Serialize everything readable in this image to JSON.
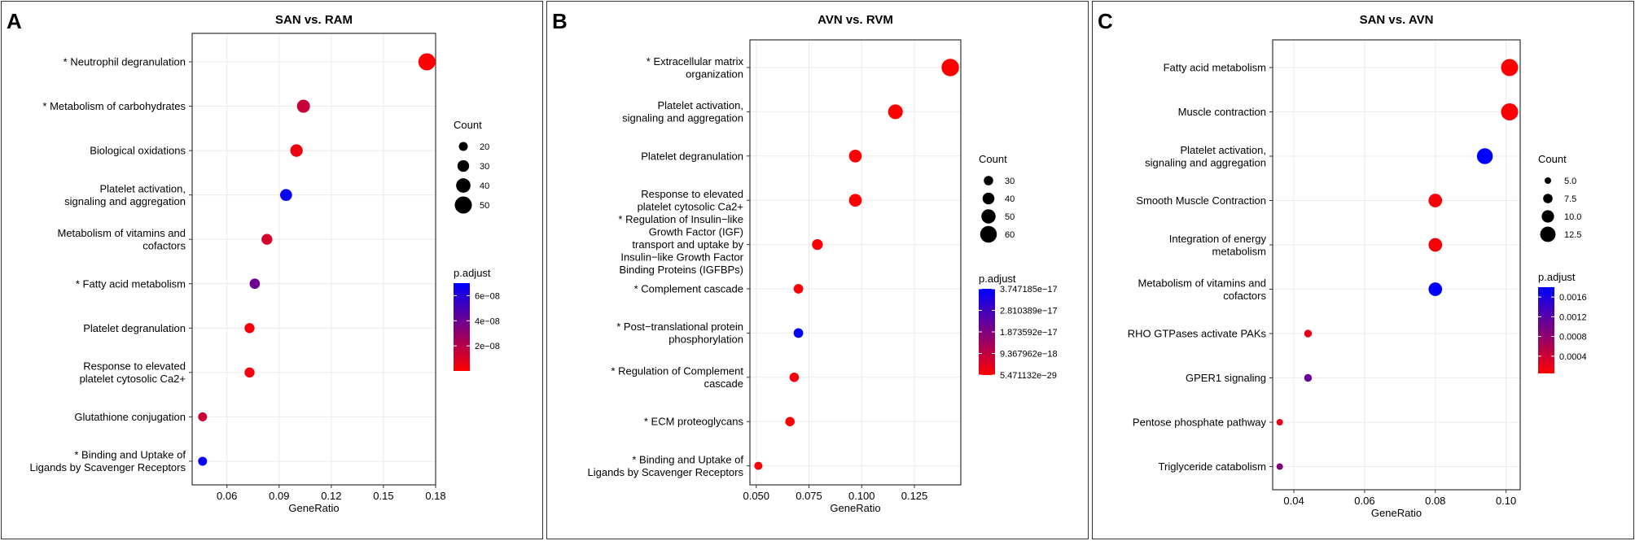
{
  "chart_data": [
    {
      "type": "scatter",
      "panel_letter": "A",
      "title": "SAN vs. RAM",
      "xlabel": "GeneRatio",
      "ylabel": "",
      "xlim": [
        0.04,
        0.18
      ],
      "xticks": [
        0.06,
        0.09,
        0.12,
        0.15,
        0.18
      ],
      "xtick_labels": [
        "0.06",
        "0.09",
        "0.12",
        "0.15",
        "0.18"
      ],
      "size_legend": {
        "title": "Count",
        "values": [
          20,
          30,
          40,
          50
        ],
        "labels": [
          "20",
          "30",
          "40",
          "50"
        ]
      },
      "color_legend": {
        "title": "p.adjust",
        "min": 0,
        "max": 7e-08,
        "labels": [
          "6e−08",
          "4e−08",
          "2e−08"
        ],
        "label_values": [
          6e-08,
          4e-08,
          2e-08
        ]
      },
      "points": [
        {
          "term": "* Neutrophil degranulation",
          "x": 0.175,
          "count": 58,
          "p": 1e-10
        },
        {
          "term": "* Metabolism of carbohydrates",
          "x": 0.104,
          "count": 35,
          "p": 1.5e-08
        },
        {
          "term": "Biological oxidations",
          "x": 0.1,
          "count": 33,
          "p": 4e-09
        },
        {
          "term": "Platelet activation,\nsignaling and aggregation",
          "x": 0.094,
          "count": 31,
          "p": 6.8e-08
        },
        {
          "term": "Metabolism of vitamins and\ncofactors",
          "x": 0.083,
          "count": 27,
          "p": 1.2e-08
        },
        {
          "term": "* Fatty acid metabolism",
          "x": 0.076,
          "count": 25,
          "p": 4e-08
        },
        {
          "term": "Platelet degranulation",
          "x": 0.073,
          "count": 24,
          "p": 3e-09
        },
        {
          "term": "Response to elevated\nplatelet cytosolic Ca2+",
          "x": 0.073,
          "count": 24,
          "p": 3e-09
        },
        {
          "term": "Glutathione conjugation",
          "x": 0.046,
          "count": 13,
          "p": 1.5e-08
        },
        {
          "term": "* Binding and Uptake of\nLigands by Scavenger Receptors",
          "x": 0.046,
          "count": 13,
          "p": 6.9e-08
        }
      ]
    },
    {
      "type": "scatter",
      "panel_letter": "B",
      "title": "AVN vs. RVM",
      "xlabel": "GeneRatio",
      "ylabel": "",
      "xlim": [
        0.047,
        0.147
      ],
      "xticks": [
        0.05,
        0.075,
        0.1,
        0.125
      ],
      "xtick_labels": [
        "0.050",
        "0.075",
        "0.100",
        "0.125"
      ],
      "size_legend": {
        "title": "Count",
        "values": [
          30,
          40,
          50,
          60
        ],
        "labels": [
          "30",
          "40",
          "50",
          "60"
        ]
      },
      "color_legend": {
        "title": "p.adjust",
        "min": 5.471132e-29,
        "max": 3.747185e-17,
        "labels": [
          "3.747185e−17",
          "2.810389e−17",
          "1.873592e−17",
          "9.367962e−18",
          "5.471132e−29"
        ],
        "label_values": [
          3.747185e-17,
          2.810389e-17,
          1.873592e-17,
          9.367962e-18,
          5.471132e-29
        ]
      },
      "points": [
        {
          "term": "* Extracellular matrix\norganization",
          "x": 0.142,
          "count": 63,
          "p": 1e-28
        },
        {
          "term": "Platelet activation,\nsignaling and aggregation",
          "x": 0.116,
          "count": 52,
          "p": 1e-20
        },
        {
          "term": "Platelet degranulation",
          "x": 0.097,
          "count": 44,
          "p": 1e-20
        },
        {
          "term": "Response to elevated\nplatelet cytosolic Ca2+",
          "x": 0.097,
          "count": 44,
          "p": 1e-20
        },
        {
          "term": "* Regulation of Insulin−like\nGrowth Factor (IGF)\ntransport and uptake by\nInsulin−like Growth Factor\nBinding Proteins (IGFBPs)",
          "x": 0.079,
          "count": 36,
          "p": 5e-19
        },
        {
          "term": "* Complement cascade",
          "x": 0.07,
          "count": 31,
          "p": 5e-19
        },
        {
          "term": "* Post−translational protein\nphosphorylation",
          "x": 0.07,
          "count": 31,
          "p": 3.747185e-17
        },
        {
          "term": "* Regulation of Complement\ncascade",
          "x": 0.068,
          "count": 30,
          "p": 1e-18
        },
        {
          "term": "* ECM proteoglycans",
          "x": 0.066,
          "count": 30,
          "p": 1e-19
        },
        {
          "term": "* Binding and Uptake of\nLigands by Scavenger Receptors",
          "x": 0.051,
          "count": 23,
          "p": 1e-18
        }
      ]
    },
    {
      "type": "scatter",
      "panel_letter": "C",
      "title": "SAN vs. AVN",
      "xlabel": "GeneRatio",
      "ylabel": "",
      "xlim": [
        0.034,
        0.104
      ],
      "xticks": [
        0.04,
        0.06,
        0.08,
        0.1
      ],
      "xtick_labels": [
        "0.04",
        "0.06",
        "0.08",
        "0.10"
      ],
      "size_legend": {
        "title": "Count",
        "values": [
          5,
          7.5,
          10,
          12.5
        ],
        "labels": [
          "5.0",
          "7.5",
          "10.0",
          "12.5"
        ]
      },
      "color_legend": {
        "title": "p.adjust",
        "min": 5e-05,
        "max": 0.0018,
        "labels": [
          "0.0016",
          "0.0012",
          "0.0008",
          "0.0004"
        ],
        "label_values": [
          0.0016,
          0.0012,
          0.0008,
          0.0004
        ]
      },
      "points": [
        {
          "term": "Fatty acid metabolism",
          "x": 0.101,
          "count": 14,
          "p": 5e-05
        },
        {
          "term": "Muscle contraction",
          "x": 0.101,
          "count": 14,
          "p": 8e-05
        },
        {
          "term": "Platelet activation,\nsignaling and aggregation",
          "x": 0.094,
          "count": 13,
          "p": 0.0018
        },
        {
          "term": "Smooth Muscle Contraction",
          "x": 0.08,
          "count": 11,
          "p": 0.0001
        },
        {
          "term": "Integration of energy\nmetabolism",
          "x": 0.08,
          "count": 11,
          "p": 0.0001
        },
        {
          "term": "Metabolism of vitamins and\ncofactors",
          "x": 0.08,
          "count": 11,
          "p": 0.0018
        },
        {
          "term": "RHO GTPases activate PAKs",
          "x": 0.044,
          "count": 6,
          "p": 0.0002
        },
        {
          "term": "GPER1 signaling",
          "x": 0.044,
          "count": 6,
          "p": 0.0011
        },
        {
          "term": "Pentose phosphate pathway",
          "x": 0.036,
          "count": 5,
          "p": 0.0002
        },
        {
          "term": "Triglyceride catabolism",
          "x": 0.036,
          "count": 5,
          "p": 0.0009
        }
      ]
    }
  ],
  "colors": {
    "low": "#ff0000",
    "high": "#0000ff",
    "grid": "#ebebeb",
    "axis": "#333333",
    "text": "#000000"
  }
}
